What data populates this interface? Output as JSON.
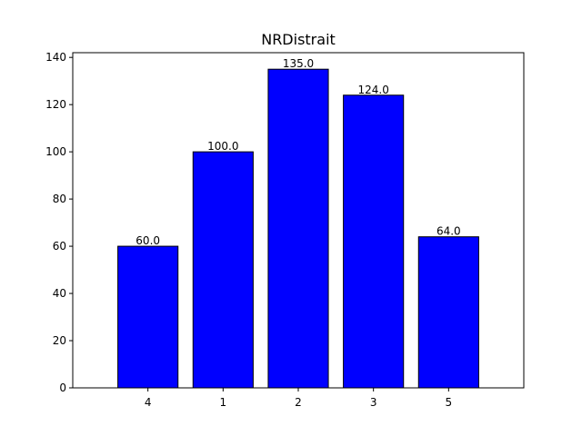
{
  "chart_data": {
    "type": "bar",
    "title": "NRDistrait",
    "xlabel": "",
    "ylabel": "",
    "categories": [
      "4",
      "1",
      "2",
      "3",
      "5"
    ],
    "values": [
      60,
      100,
      135,
      124,
      64
    ],
    "data_labels": [
      "60.0",
      "100.0",
      "135.0",
      "124.0",
      "64.0"
    ],
    "yticks": [
      0,
      20,
      40,
      60,
      80,
      100,
      120,
      140
    ],
    "ylim": [
      0,
      142
    ],
    "grid": false,
    "legend": "none",
    "colors": {
      "bar_fill": "#0000ff",
      "bar_edge": "#000000",
      "axis": "#000000",
      "background": "#ffffff"
    }
  }
}
